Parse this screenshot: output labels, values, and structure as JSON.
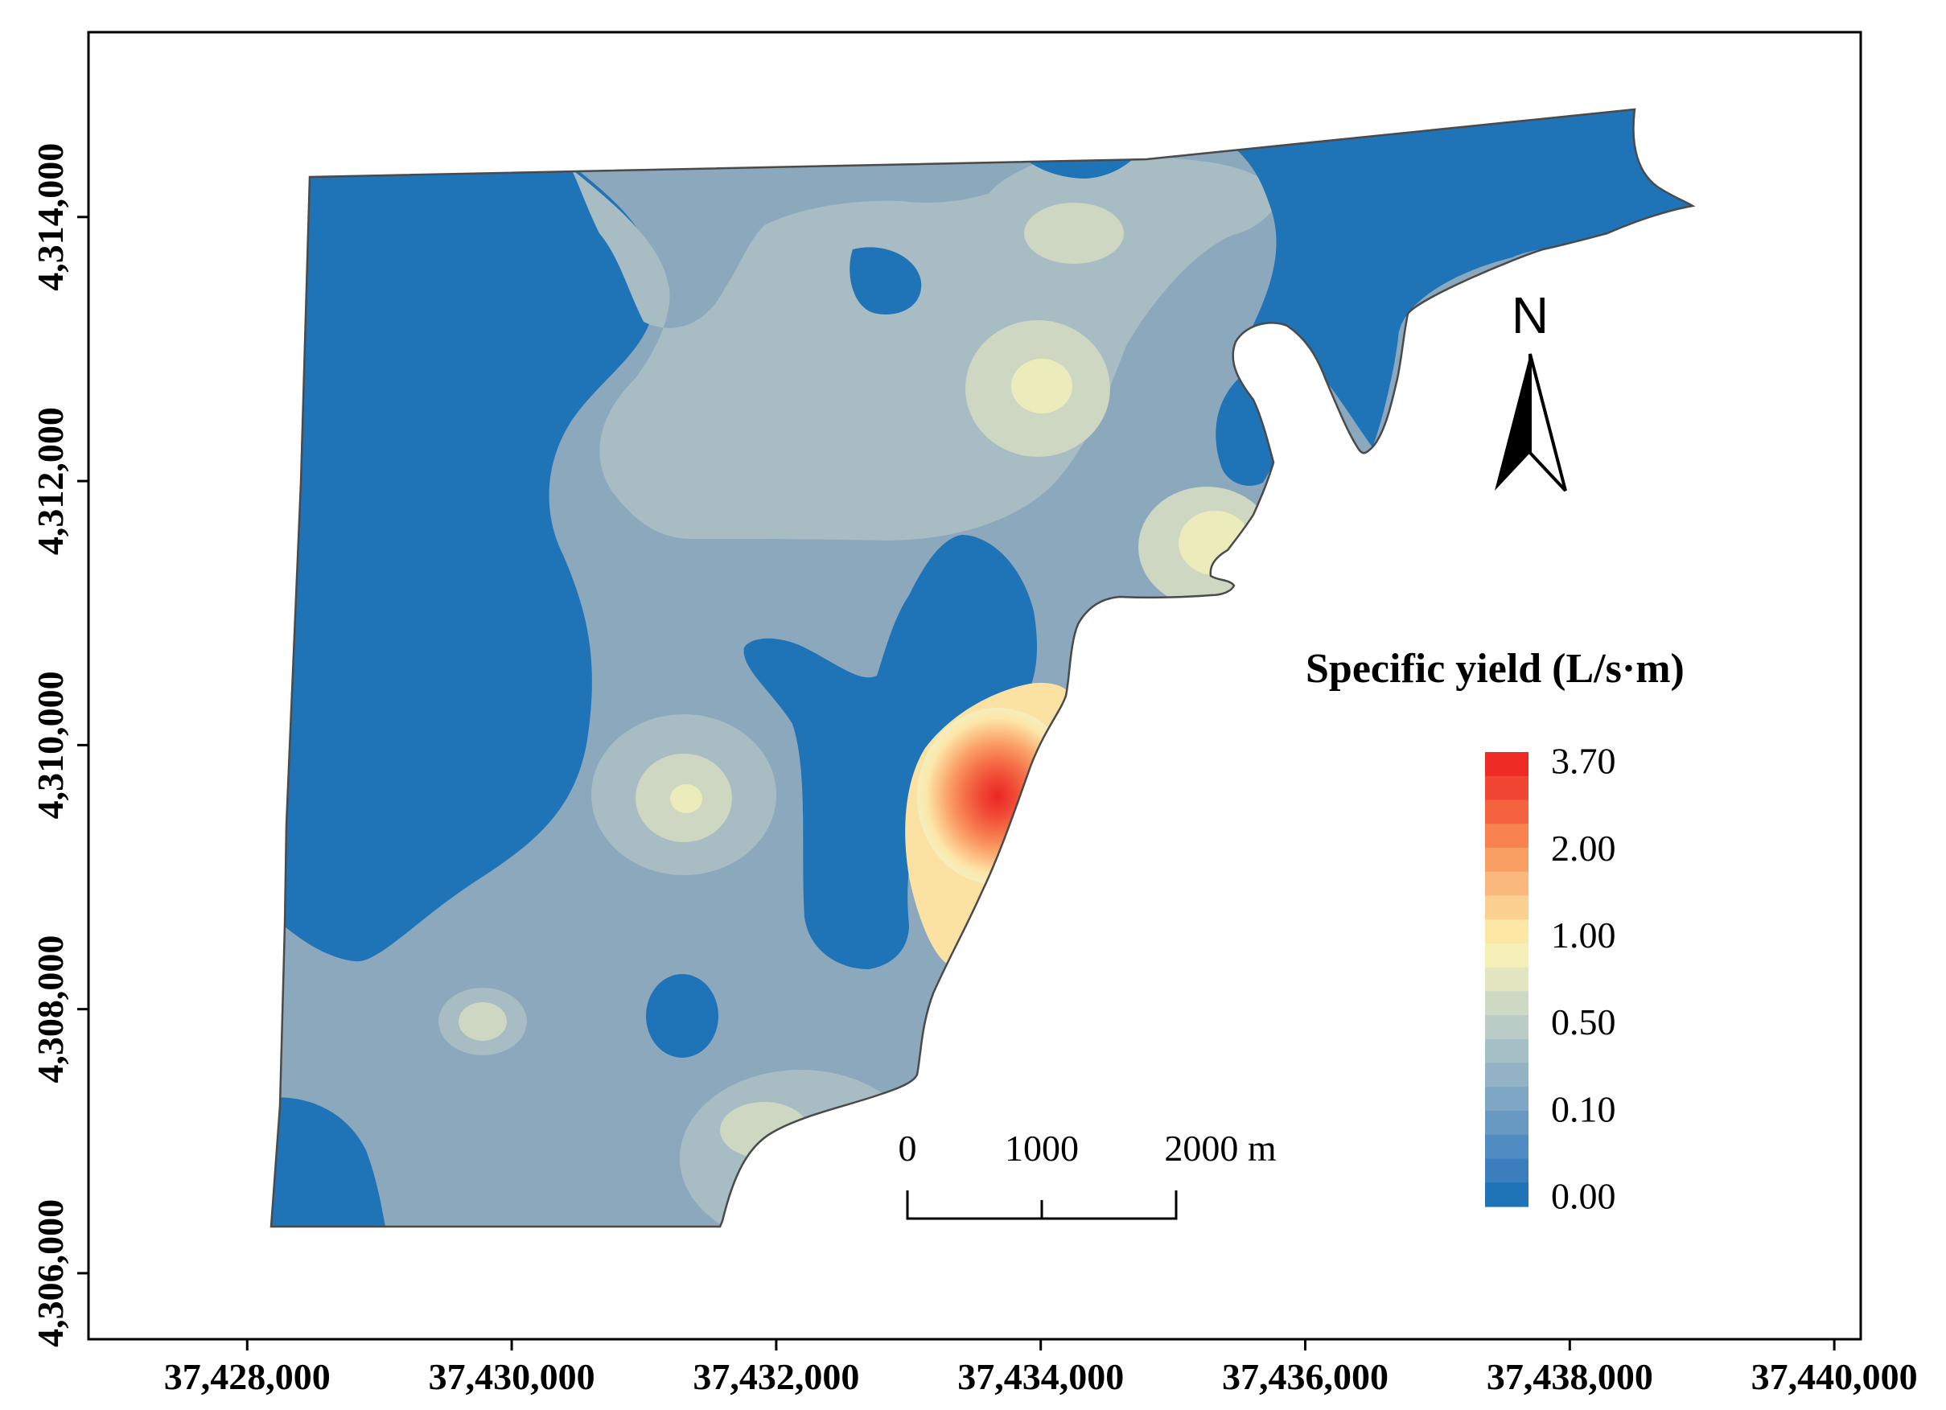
{
  "map": {
    "x_axis": {
      "ticks": [
        {
          "value": 37428000,
          "label": "37,428,000"
        },
        {
          "value": 37430000,
          "label": "37,430,000"
        },
        {
          "value": 37432000,
          "label": "37,432,000"
        },
        {
          "value": 37434000,
          "label": "37,434,000"
        },
        {
          "value": 37436000,
          "label": "37,436,000"
        },
        {
          "value": 37438000,
          "label": "37,438,000"
        },
        {
          "value": 37440000,
          "label": "37,440,000"
        }
      ],
      "range": [
        37426800,
        37440200
      ]
    },
    "y_axis": {
      "ticks": [
        {
          "value": 4306000,
          "label": "4,306,000"
        },
        {
          "value": 4308000,
          "label": "4,308,000"
        },
        {
          "value": 4310000,
          "label": "4,310,000"
        },
        {
          "value": 4312000,
          "label": "4,312,000"
        },
        {
          "value": 4314000,
          "label": "4,314,000"
        }
      ],
      "range": [
        4305500,
        4315400
      ]
    },
    "north_arrow": {
      "label": "N",
      "icon": "north-arrow-icon"
    },
    "scale_bar": {
      "ticks": [
        {
          "value": 0,
          "label": "0"
        },
        {
          "value": 1000,
          "label": "1000"
        },
        {
          "value": 2000,
          "label": "2000 m"
        }
      ]
    },
    "legend": {
      "title": "Specific yield (L/s·m)",
      "labels": [
        "3.70",
        "2.00",
        "1.00",
        "0.50",
        "0.10",
        "0.00"
      ],
      "colors": [
        "#ed2a24",
        "#f14634",
        "#f5623f",
        "#f8824f",
        "#fa9f64",
        "#fbb87c",
        "#fcd091",
        "#fde7a4",
        "#f6f0b8",
        "#e2e5c0",
        "#ced9c3",
        "#b9ccc6",
        "#a5bfc7",
        "#93b2c6",
        "#7ea6c5",
        "#6899c3",
        "#508bc1",
        "#3a7ebd",
        "#1f74b8"
      ]
    },
    "classes": {
      "c0": "#1f74b8",
      "c1": "#8ba8bd",
      "c2": "#a7bcc3",
      "c3": "#cdd7c2",
      "c4": "#ebebbc",
      "c5": "#fbe2a2"
    }
  }
}
